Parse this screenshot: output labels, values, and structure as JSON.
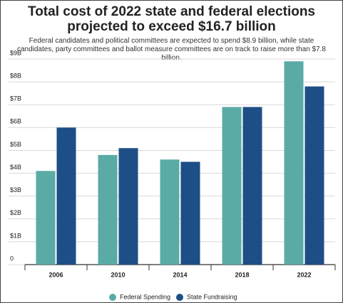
{
  "chart_data": {
    "type": "bar",
    "title": "Total cost of 2022 state and federal elections projected to exceed $16.7 billion",
    "subtitle": "Federal candidates and political committees are expected to spend $8.9 billion, while state candidates, party committees and ballot measure committees are on track to raise more than $7.8 billion.",
    "categories": [
      "2006",
      "2010",
      "2014",
      "2018",
      "2022"
    ],
    "series": [
      {
        "name": "Federal Spending",
        "color": "#5aaba5",
        "values": [
          4.1,
          4.8,
          4.6,
          6.9,
          8.9
        ]
      },
      {
        "name": "State Fundraising",
        "color": "#1d4e86",
        "values": [
          6.0,
          5.1,
          4.5,
          6.9,
          7.8
        ]
      }
    ],
    "ylim": [
      0,
      9
    ],
    "yticks": [
      0,
      {
        "value": 1,
        "label": "$1B"
      },
      {
        "value": 2,
        "label": "$2B"
      },
      {
        "value": 3,
        "label": "$3B"
      },
      {
        "value": 4,
        "label": "$4B"
      },
      {
        "value": 5,
        "label": "$5B"
      },
      {
        "value": 6,
        "label": "$6B"
      },
      {
        "value": 7,
        "label": "$7B"
      },
      {
        "value": 8,
        "label": "$8B"
      },
      {
        "value": 9,
        "label": "$9B"
      }
    ],
    "grid": true
  }
}
